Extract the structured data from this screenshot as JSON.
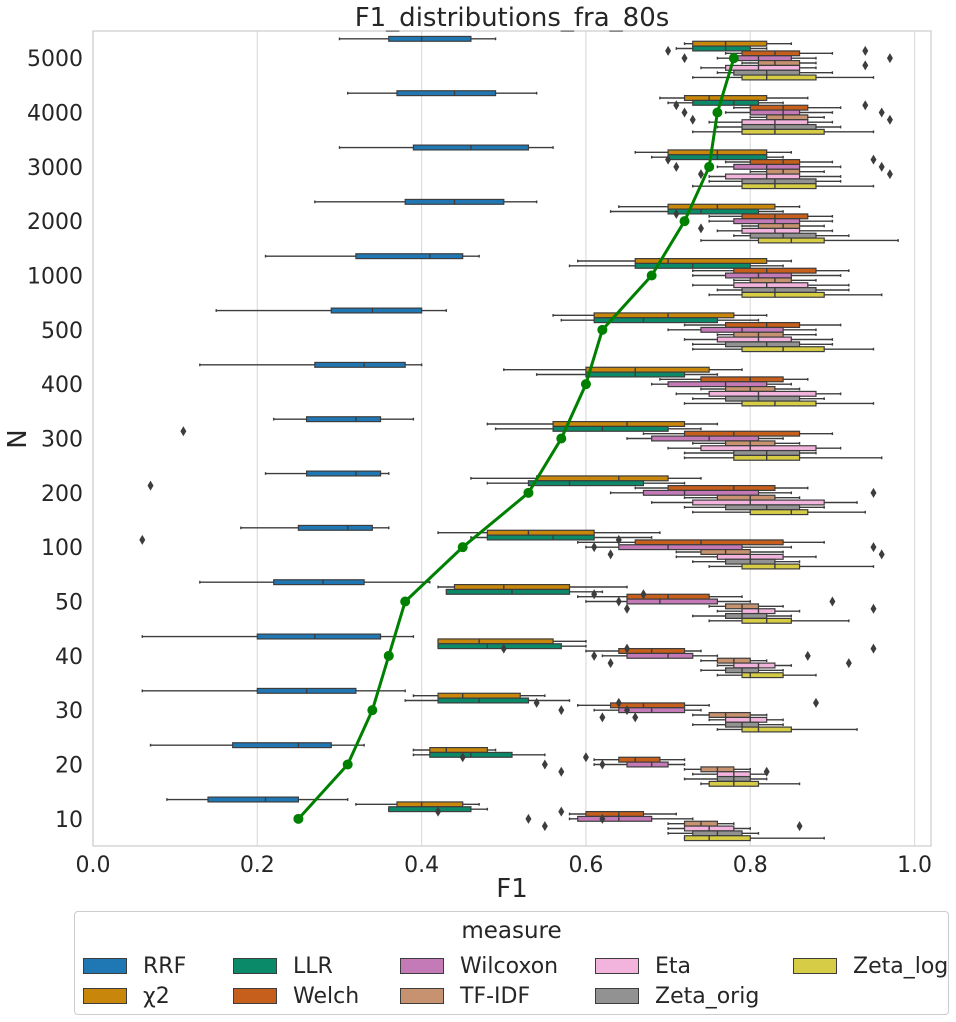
{
  "chart_data": {
    "type": "boxplot",
    "title": "F1_distributions_fra_80s",
    "xlabel": "F1",
    "ylabel": "N",
    "xlim": [
      0.0,
      1.02
    ],
    "xticks": [
      "0.0",
      "0.2",
      "0.4",
      "0.6",
      "0.8",
      "1.0"
    ],
    "categories": [
      "5000",
      "4000",
      "3000",
      "2000",
      "1000",
      "500",
      "400",
      "300",
      "200",
      "100",
      "50",
      "40",
      "30",
      "20",
      "10"
    ],
    "grid": "vertical",
    "legend": {
      "title": "measure",
      "placement": "bottom"
    },
    "series": [
      {
        "name": "RRF",
        "color": "#1f77b4",
        "boxes": [
          [
            0.3,
            0.36,
            0.4,
            0.46,
            0.49
          ],
          [
            0.31,
            0.37,
            0.44,
            0.49,
            0.54
          ],
          [
            0.3,
            0.39,
            0.46,
            0.53,
            0.56
          ],
          [
            0.27,
            0.38,
            0.44,
            0.5,
            0.54
          ],
          [
            0.21,
            0.32,
            0.41,
            0.45,
            0.47
          ],
          [
            0.15,
            0.29,
            0.34,
            0.4,
            0.43
          ],
          [
            0.13,
            0.27,
            0.33,
            0.38,
            0.4
          ],
          [
            0.22,
            0.26,
            0.32,
            0.35,
            0.39
          ],
          [
            0.21,
            0.26,
            0.32,
            0.35,
            0.36
          ],
          [
            0.18,
            0.25,
            0.31,
            0.34,
            0.36
          ],
          [
            0.13,
            0.22,
            0.28,
            0.33,
            0.41
          ],
          [
            0.06,
            0.2,
            0.27,
            0.35,
            0.39
          ],
          [
            0.06,
            0.2,
            0.26,
            0.32,
            0.38
          ],
          [
            0.07,
            0.17,
            0.25,
            0.29,
            0.33
          ],
          [
            0.09,
            0.14,
            0.21,
            0.25,
            0.31
          ]
        ]
      },
      {
        "name": "χ2",
        "color": "#c8860a",
        "boxes": [
          [
            0.72,
            0.73,
            0.77,
            0.82,
            0.85
          ],
          [
            0.69,
            0.72,
            0.75,
            0.82,
            0.87
          ],
          [
            0.66,
            0.7,
            0.76,
            0.82,
            0.85
          ],
          [
            0.64,
            0.7,
            0.76,
            0.83,
            0.86
          ],
          [
            0.59,
            0.66,
            0.7,
            0.82,
            0.85
          ],
          [
            0.56,
            0.61,
            0.7,
            0.78,
            0.82
          ],
          [
            0.5,
            0.6,
            0.66,
            0.75,
            0.79
          ],
          [
            0.48,
            0.56,
            0.65,
            0.72,
            0.76
          ],
          [
            0.46,
            0.54,
            0.64,
            0.7,
            0.74
          ],
          [
            0.42,
            0.48,
            0.53,
            0.61,
            0.69
          ],
          [
            0.42,
            0.44,
            0.5,
            0.58,
            0.65
          ],
          [
            0.42,
            0.42,
            0.47,
            0.56,
            0.6
          ],
          [
            0.39,
            0.42,
            0.45,
            0.52,
            0.55
          ],
          [
            0.39,
            0.41,
            0.43,
            0.48,
            0.49
          ],
          [
            0.32,
            0.37,
            0.4,
            0.45,
            0.47
          ]
        ]
      },
      {
        "name": "LLR",
        "color": "#0b8a6a",
        "boxes": [
          [
            0.71,
            0.73,
            0.77,
            0.8,
            0.82
          ],
          [
            0.7,
            0.73,
            0.78,
            0.81,
            0.84
          ],
          [
            0.68,
            0.7,
            0.76,
            0.82,
            0.84
          ],
          [
            0.63,
            0.7,
            0.74,
            0.81,
            0.84
          ],
          [
            0.58,
            0.66,
            0.73,
            0.8,
            0.84
          ],
          [
            0.57,
            0.61,
            0.67,
            0.76,
            0.81
          ],
          [
            0.54,
            0.6,
            0.66,
            0.72,
            0.76
          ],
          [
            0.49,
            0.56,
            0.62,
            0.7,
            0.74
          ],
          [
            0.48,
            0.53,
            0.58,
            0.67,
            0.72
          ],
          [
            0.46,
            0.48,
            0.56,
            0.61,
            0.68
          ],
          [
            0.44,
            0.43,
            0.51,
            0.58,
            0.62
          ],
          [
            0.42,
            0.42,
            0.48,
            0.57,
            0.6
          ],
          [
            0.38,
            0.42,
            0.47,
            0.53,
            0.58
          ],
          [
            0.39,
            0.41,
            0.46,
            0.51,
            0.55
          ],
          [
            0.36,
            0.36,
            0.42,
            0.46,
            0.48
          ]
        ]
      },
      {
        "name": "Welch",
        "color": "#c65f1b",
        "boxes": [
          [
            0.77,
            0.79,
            0.83,
            0.86,
            0.9
          ],
          [
            0.78,
            0.8,
            0.84,
            0.87,
            0.91
          ],
          [
            0.77,
            0.8,
            0.84,
            0.86,
            0.9
          ],
          [
            0.75,
            0.79,
            0.83,
            0.87,
            0.9
          ],
          [
            0.73,
            0.78,
            0.82,
            0.88,
            0.92
          ],
          [
            0.72,
            0.77,
            0.82,
            0.86,
            0.91
          ],
          [
            0.69,
            0.74,
            0.8,
            0.84,
            0.87
          ],
          [
            0.67,
            0.72,
            0.78,
            0.86,
            0.9
          ],
          [
            0.66,
            0.7,
            0.78,
            0.83,
            0.87
          ],
          [
            0.59,
            0.66,
            0.74,
            0.84,
            0.89
          ],
          [
            0.59,
            0.65,
            0.7,
            0.75,
            0.79
          ],
          [
            0.6,
            0.64,
            0.68,
            0.72,
            0.74
          ],
          [
            0.59,
            0.63,
            0.67,
            0.72,
            0.75
          ],
          [
            0.61,
            0.64,
            0.66,
            0.69,
            0.72
          ],
          [
            0.58,
            0.6,
            0.64,
            0.67,
            0.71
          ]
        ]
      },
      {
        "name": "Wilcoxon",
        "color": "#c57ab8",
        "boxes": [
          [
            0.76,
            0.78,
            0.81,
            0.85,
            0.88
          ],
          [
            0.77,
            0.8,
            0.84,
            0.86,
            0.9
          ],
          [
            0.76,
            0.78,
            0.82,
            0.86,
            0.91
          ],
          [
            0.75,
            0.78,
            0.83,
            0.86,
            0.9
          ],
          [
            0.73,
            0.77,
            0.81,
            0.85,
            0.91
          ],
          [
            0.7,
            0.74,
            0.79,
            0.84,
            0.88
          ],
          [
            0.68,
            0.7,
            0.77,
            0.82,
            0.85
          ],
          [
            0.65,
            0.68,
            0.75,
            0.81,
            0.84
          ],
          [
            0.63,
            0.67,
            0.72,
            0.81,
            0.85
          ],
          [
            0.6,
            0.64,
            0.7,
            0.79,
            0.85
          ],
          [
            0.6,
            0.65,
            0.69,
            0.76,
            0.8
          ],
          [
            0.62,
            0.65,
            0.7,
            0.73,
            0.76
          ],
          [
            0.61,
            0.64,
            0.68,
            0.72,
            0.74
          ],
          [
            0.61,
            0.65,
            0.68,
            0.7,
            0.72
          ],
          [
            0.58,
            0.59,
            0.64,
            0.68,
            0.73
          ]
        ]
      },
      {
        "name": "TF-IDF",
        "color": "#c69270",
        "boxes": [
          [
            0.79,
            0.81,
            0.83,
            0.86,
            0.88
          ],
          [
            0.8,
            0.82,
            0.84,
            0.87,
            0.89
          ],
          [
            0.8,
            0.82,
            0.84,
            0.86,
            0.89
          ],
          [
            0.79,
            0.81,
            0.84,
            0.86,
            0.89
          ],
          [
            0.78,
            0.8,
            0.83,
            0.85,
            0.88
          ],
          [
            0.76,
            0.78,
            0.81,
            0.84,
            0.88
          ],
          [
            0.74,
            0.77,
            0.8,
            0.83,
            0.86
          ],
          [
            0.73,
            0.77,
            0.8,
            0.83,
            0.86
          ],
          [
            0.72,
            0.76,
            0.8,
            0.83,
            0.86
          ],
          [
            0.71,
            0.74,
            0.77,
            0.8,
            0.84
          ],
          [
            0.75,
            0.77,
            0.79,
            0.81,
            0.84
          ],
          [
            0.74,
            0.76,
            0.78,
            0.8,
            0.82
          ],
          [
            0.73,
            0.75,
            0.77,
            0.8,
            0.82
          ],
          [
            0.72,
            0.74,
            0.76,
            0.78,
            0.8
          ],
          [
            0.7,
            0.72,
            0.74,
            0.76,
            0.78
          ]
        ]
      },
      {
        "name": "Eta",
        "color": "#f2b3dd",
        "boxes": [
          [
            0.74,
            0.77,
            0.81,
            0.86,
            0.88
          ],
          [
            0.75,
            0.79,
            0.83,
            0.87,
            0.9
          ],
          [
            0.75,
            0.77,
            0.82,
            0.86,
            0.91
          ],
          [
            0.76,
            0.79,
            0.83,
            0.86,
            0.9
          ],
          [
            0.73,
            0.78,
            0.82,
            0.87,
            0.92
          ],
          [
            0.72,
            0.76,
            0.81,
            0.85,
            0.9
          ],
          [
            0.71,
            0.75,
            0.81,
            0.88,
            0.91
          ],
          [
            0.7,
            0.74,
            0.8,
            0.88,
            0.91
          ],
          [
            0.68,
            0.73,
            0.8,
            0.89,
            0.93
          ],
          [
            0.71,
            0.76,
            0.8,
            0.84,
            0.88
          ],
          [
            0.76,
            0.79,
            0.81,
            0.83,
            0.86
          ],
          [
            0.76,
            0.78,
            0.81,
            0.83,
            0.85
          ],
          [
            0.75,
            0.77,
            0.8,
            0.82,
            0.84
          ],
          [
            0.73,
            0.76,
            0.78,
            0.8,
            0.82
          ],
          [
            0.7,
            0.72,
            0.75,
            0.78,
            0.8
          ]
        ]
      },
      {
        "name": "Zeta_orig",
        "color": "#929292",
        "boxes": [
          [
            0.76,
            0.78,
            0.82,
            0.86,
            0.9
          ],
          [
            0.76,
            0.79,
            0.83,
            0.88,
            0.91
          ],
          [
            0.75,
            0.79,
            0.83,
            0.88,
            0.91
          ],
          [
            0.78,
            0.8,
            0.84,
            0.88,
            0.92
          ],
          [
            0.76,
            0.79,
            0.83,
            0.88,
            0.92
          ],
          [
            0.73,
            0.77,
            0.82,
            0.86,
            0.9
          ],
          [
            0.73,
            0.77,
            0.81,
            0.86,
            0.89
          ],
          [
            0.72,
            0.78,
            0.82,
            0.86,
            0.88
          ],
          [
            0.72,
            0.77,
            0.82,
            0.86,
            0.89
          ],
          [
            0.73,
            0.77,
            0.8,
            0.83,
            0.86
          ],
          [
            0.73,
            0.77,
            0.79,
            0.82,
            0.85
          ],
          [
            0.74,
            0.77,
            0.79,
            0.81,
            0.84
          ],
          [
            0.73,
            0.77,
            0.79,
            0.81,
            0.84
          ],
          [
            0.72,
            0.76,
            0.78,
            0.8,
            0.82
          ],
          [
            0.7,
            0.73,
            0.76,
            0.79,
            0.81
          ]
        ]
      },
      {
        "name": "Zeta_log",
        "color": "#d6cc45",
        "boxes": [
          [
            0.73,
            0.79,
            0.82,
            0.88,
            0.95
          ],
          [
            0.73,
            0.79,
            0.83,
            0.89,
            0.95
          ],
          [
            0.73,
            0.79,
            0.83,
            0.88,
            0.95
          ],
          [
            0.74,
            0.81,
            0.85,
            0.89,
            0.98
          ],
          [
            0.75,
            0.79,
            0.83,
            0.89,
            0.96
          ],
          [
            0.73,
            0.79,
            0.84,
            0.89,
            0.95
          ],
          [
            0.72,
            0.79,
            0.83,
            0.88,
            0.95
          ],
          [
            0.72,
            0.78,
            0.82,
            0.86,
            0.96
          ],
          [
            0.73,
            0.8,
            0.85,
            0.87,
            0.94
          ],
          [
            0.75,
            0.79,
            0.83,
            0.86,
            0.95
          ],
          [
            0.75,
            0.79,
            0.82,
            0.85,
            0.92
          ],
          [
            0.76,
            0.79,
            0.8,
            0.84,
            0.88
          ],
          [
            0.76,
            0.79,
            0.81,
            0.85,
            0.93
          ],
          [
            0.74,
            0.75,
            0.78,
            0.81,
            0.86
          ],
          [
            0.72,
            0.72,
            0.75,
            0.8,
            0.89
          ]
        ]
      }
    ],
    "outliers": [
      {
        "category": "5000",
        "values": [
          0.7,
          0.72,
          0.94,
          0.94,
          0.97
        ]
      },
      {
        "category": "4000",
        "values": [
          0.71,
          0.72,
          0.73,
          0.94,
          0.96,
          0.97
        ]
      },
      {
        "category": "3000",
        "values": [
          0.7,
          0.71,
          0.74,
          0.95,
          0.96,
          0.97
        ]
      },
      {
        "category": "2000",
        "values": [
          0.71,
          0.72,
          0.74
        ]
      },
      {
        "category": "300",
        "values": [
          0.11
        ]
      },
      {
        "category": "200",
        "values": [
          0.07,
          0.95
        ]
      },
      {
        "category": "100",
        "values": [
          0.06,
          0.61,
          0.63,
          0.64,
          0.95,
          0.96
        ]
      },
      {
        "category": "50",
        "values": [
          0.61,
          0.64,
          0.65,
          0.67,
          0.9,
          0.95
        ]
      },
      {
        "category": "40",
        "values": [
          0.5,
          0.61,
          0.63,
          0.65,
          0.87,
          0.92,
          0.95
        ]
      },
      {
        "category": "30",
        "values": [
          0.54,
          0.57,
          0.62,
          0.64,
          0.65,
          0.66,
          0.88
        ]
      },
      {
        "category": "20",
        "values": [
          0.45,
          0.55,
          0.57,
          0.6,
          0.62,
          0.82
        ]
      },
      {
        "category": "10",
        "values": [
          0.42,
          0.53,
          0.55,
          0.57,
          0.62,
          0.86
        ]
      }
    ],
    "mean_line": {
      "color": "#008000",
      "values": [
        0.78,
        0.76,
        0.75,
        0.72,
        0.68,
        0.62,
        0.6,
        0.57,
        0.53,
        0.45,
        0.38,
        0.36,
        0.34,
        0.31,
        0.25
      ]
    }
  }
}
